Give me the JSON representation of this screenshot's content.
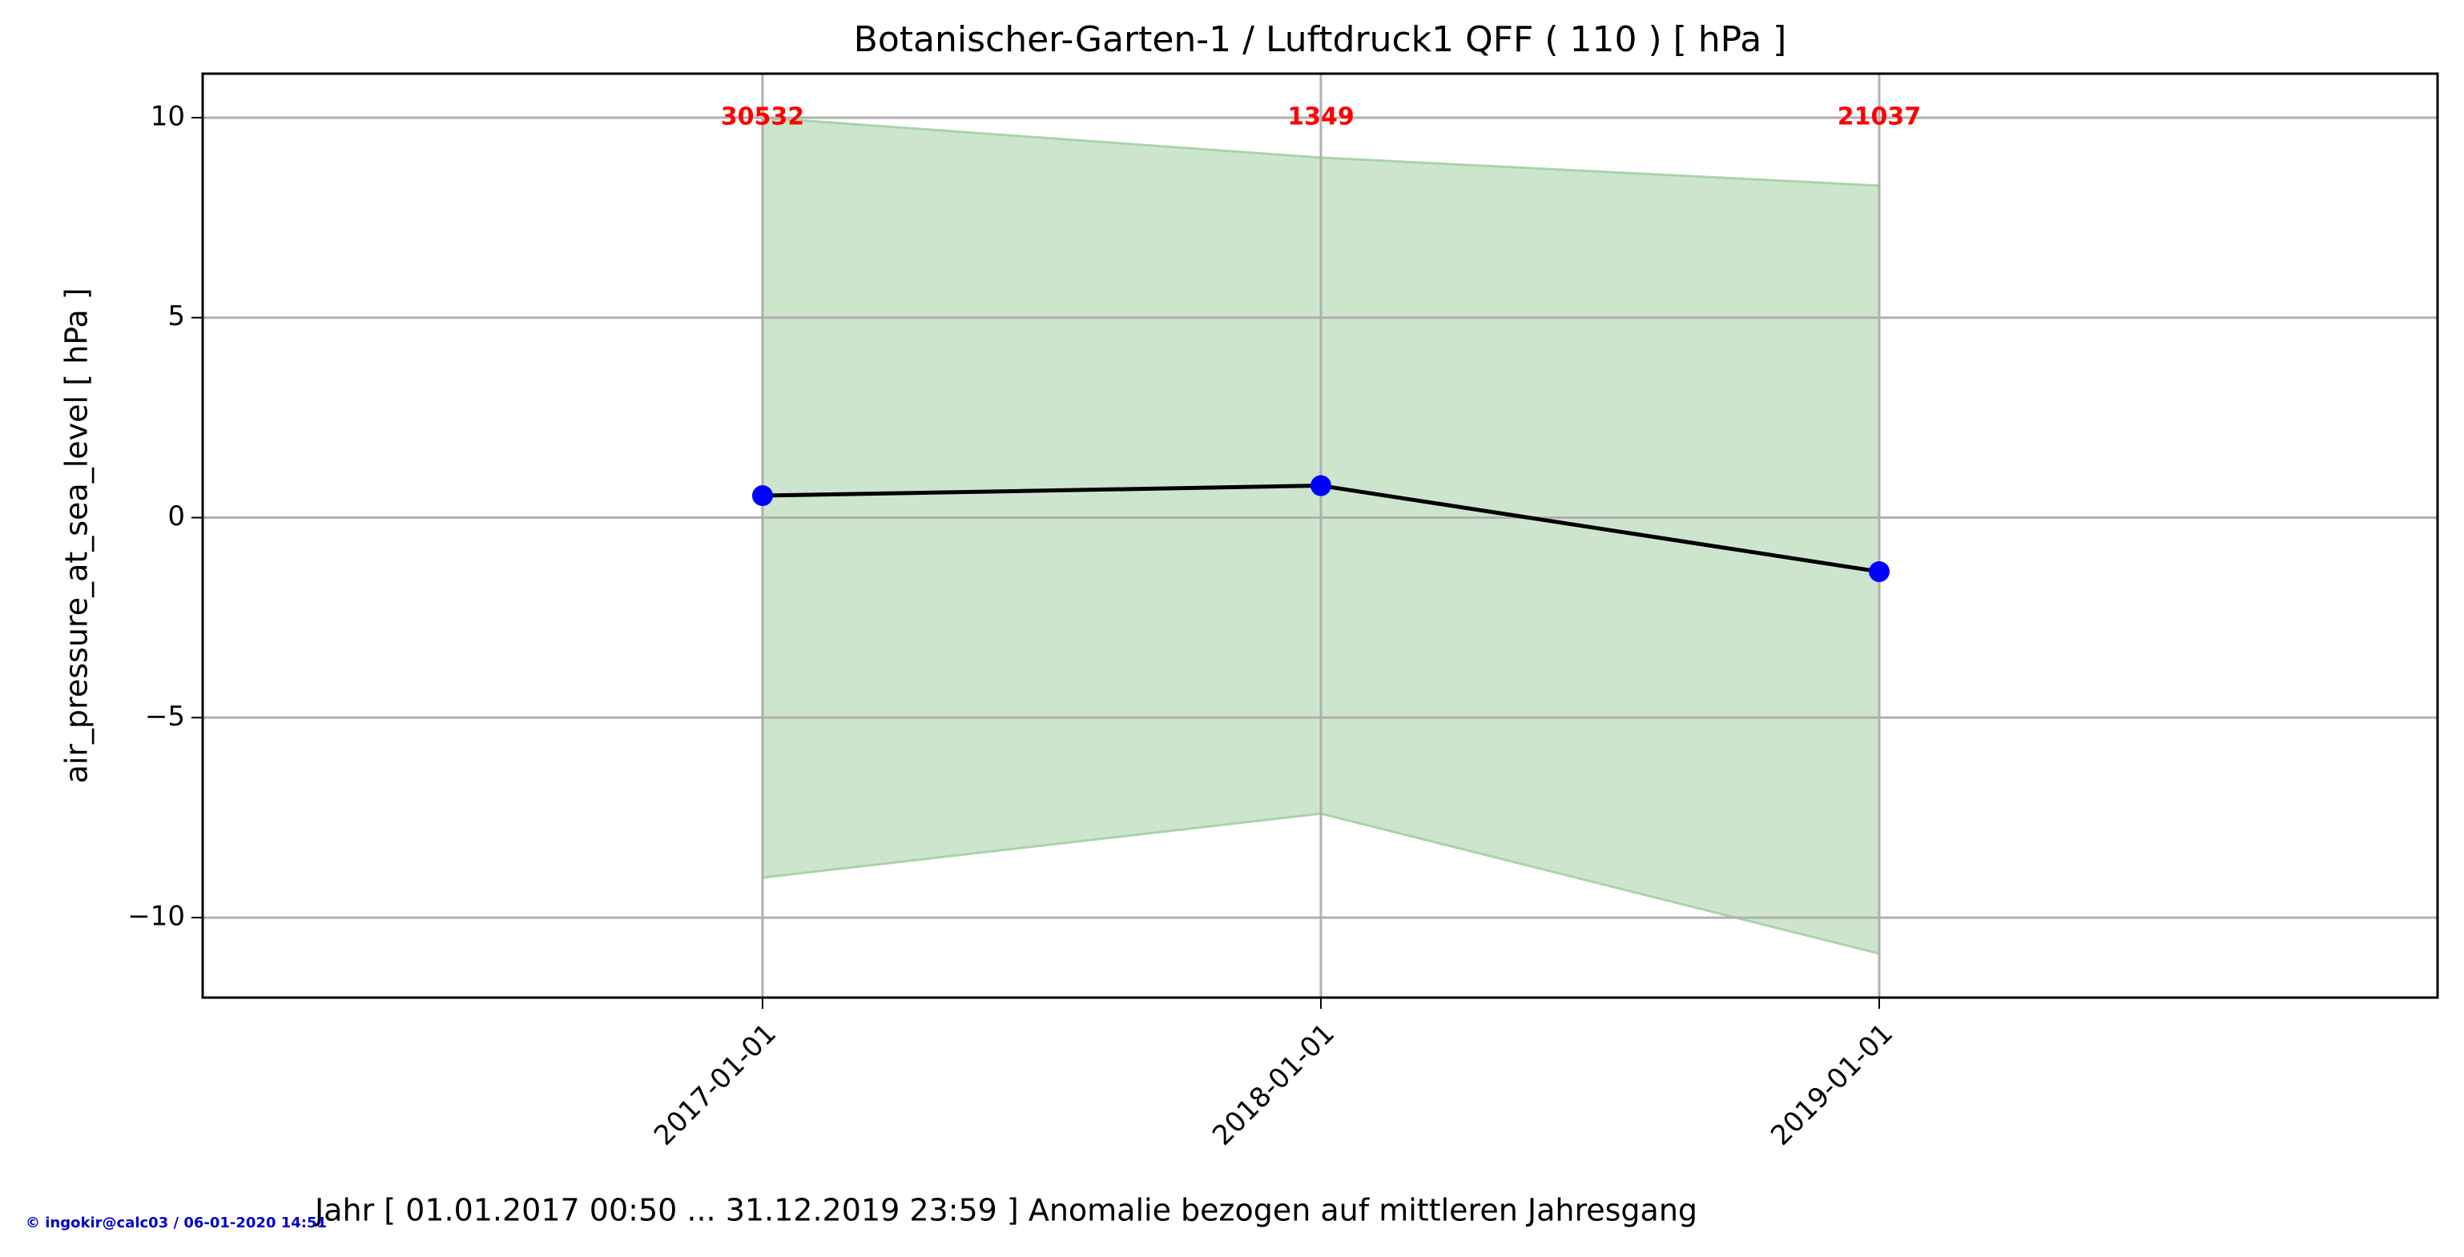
{
  "chart_data": {
    "type": "line",
    "title": "Botanischer-Garten-1 / Luftdruck1 QFF ( 110 ) [ hPa ]",
    "xlabel": "Jahr [ 01.01.2017 00:50 ... 31.12.2019 23:59 ] Anomalie bezogen auf mittleren Jahresgang",
    "ylabel": "air_pressure_at_sea_level [ hPa ]",
    "x": [
      "2017-01-01",
      "2018-01-01",
      "2019-01-01"
    ],
    "xlim": [
      "2016-01-01",
      "2020-01-01"
    ],
    "series": [
      {
        "values": [
          0.55,
          0.8,
          -1.35
        ],
        "color": "#000000",
        "marker_color": "#0000ff"
      }
    ],
    "band": {
      "upper": [
        10.0,
        9.0,
        8.3
      ],
      "lower": [
        -9.0,
        -7.4,
        -10.9
      ],
      "color": "#cde5cd",
      "edge_color": "#a8d4a8"
    },
    "counts": [
      30532,
      1349,
      21037
    ],
    "counts_color": "#ff0000",
    "ylim": [
      -12.0,
      11.1
    ],
    "yticks": [
      {
        "value": -10,
        "label": "−10"
      },
      {
        "value": -5,
        "label": "−5"
      },
      0,
      5,
      10
    ],
    "grid": true,
    "footer": "© ingokir@calc03 / 06-01-2020 14:51"
  }
}
